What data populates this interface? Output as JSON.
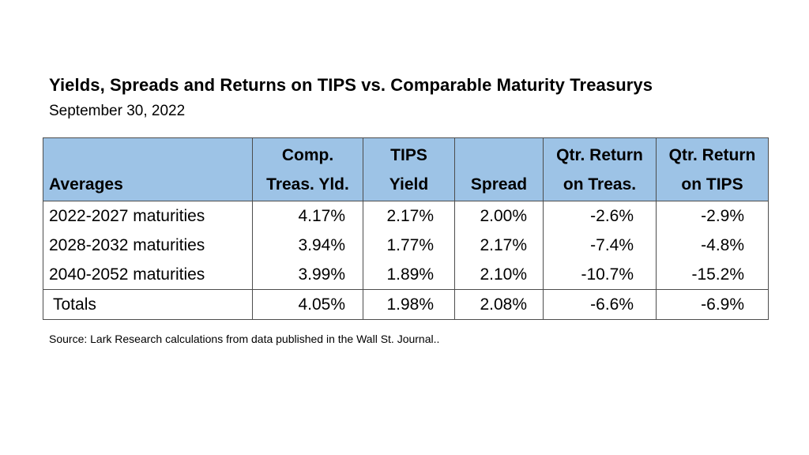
{
  "title": "Yields, Spreads and Returns on TIPS vs. Comparable Maturity Treasurys",
  "subtitle": "September 30, 2022",
  "table": {
    "headers": [
      {
        "line1": "",
        "line2": "Averages"
      },
      {
        "line1": "Comp.",
        "line2": "Treas. Yld."
      },
      {
        "line1": "TIPS",
        "line2": "Yield"
      },
      {
        "line1": "",
        "line2": "Spread"
      },
      {
        "line1": "Qtr. Return",
        "line2": "on Treas."
      },
      {
        "line1": "Qtr. Return",
        "line2": "on TIPS"
      }
    ],
    "rows": [
      [
        "2022-2027 maturities",
        "4.17%",
        "2.17%",
        "2.00%",
        "-2.6%",
        "-2.9%"
      ],
      [
        "2028-2032 maturities",
        "3.94%",
        "1.77%",
        "2.17%",
        "-7.4%",
        "-4.8%"
      ],
      [
        "2040-2052 maturities",
        "3.99%",
        "1.89%",
        "2.10%",
        "-10.7%",
        "-15.2%"
      ]
    ],
    "totals": [
      "Totals",
      "4.05%",
      "1.98%",
      "2.08%",
      "-6.6%",
      "-6.9%"
    ]
  },
  "source": "Source:  Lark Research calculations from data published in the Wall St. Journal..",
  "colors": {
    "header_background": "#9dc3e6",
    "border": "#4d4d4d",
    "text": "#000000"
  }
}
